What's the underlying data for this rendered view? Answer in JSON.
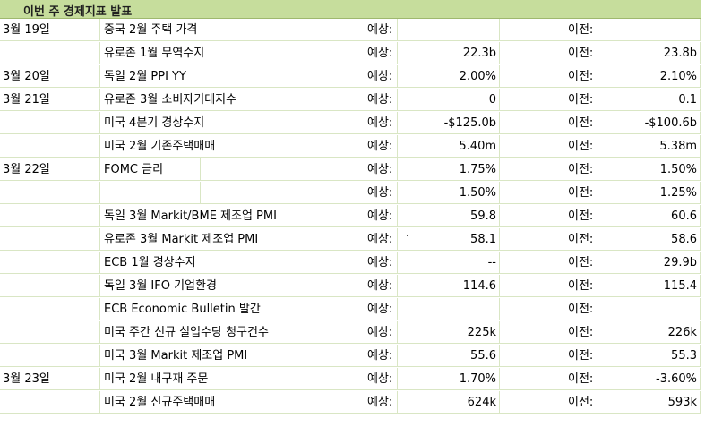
{
  "title": "이번 주 경제지표 발표",
  "forecast_label": "예상:",
  "previous_label": "이전:",
  "rows": [
    {
      "date": "3월 19일",
      "event": "중국 2월 주택 가격",
      "forecast": "",
      "previous": ""
    },
    {
      "date": "",
      "event": "유로존 1월 무역수지",
      "forecast": "22.3b",
      "previous": "23.8b"
    },
    {
      "date": "3월 20일",
      "event": "독일 2월 PPI YY",
      "forecast": "2.00%",
      "previous": "2.10%"
    },
    {
      "date": "3월 21일",
      "event": "유로존 3월 소비자기대지수",
      "forecast": "0",
      "previous": "0.1"
    },
    {
      "date": "",
      "event": "미국 4분기 경상수지",
      "forecast": "-$125.0b",
      "previous": "-$100.6b"
    },
    {
      "date": "",
      "event": "미국 2월 기존주택매매",
      "forecast": "5.40m",
      "previous": "5.38m"
    },
    {
      "date": "3월 22일",
      "event": "FOMC 금리",
      "forecast": "1.75%",
      "previous": "1.50%"
    },
    {
      "date": "",
      "event": "",
      "forecast": "1.50%",
      "previous": "1.25%"
    },
    {
      "date": "",
      "event": "독일 3월 Markit/BME 제조업 PMI",
      "forecast": "59.8",
      "previous": "60.6"
    },
    {
      "date": "",
      "event": "유로존 3월 Markit 제조업 PMI",
      "forecast": "58.1",
      "previous": "58.6"
    },
    {
      "date": "",
      "event": "ECB 1월 경상수지",
      "forecast": "--",
      "previous": "29.9b"
    },
    {
      "date": "",
      "event": "독일 3월 IFO 기업환경",
      "forecast": "114.6",
      "previous": "115.4"
    },
    {
      "date": "",
      "event": "ECB Economic Bulletin 발간",
      "forecast": "",
      "previous": ""
    },
    {
      "date": "",
      "event": "미국 주간 신규 실업수당 청구건수",
      "forecast": "225k",
      "previous": "226k"
    },
    {
      "date": "",
      "event": "미국 3월 Markit 제조업 PMI",
      "forecast": "55.6",
      "previous": "55.3"
    },
    {
      "date": "3월 23일",
      "event": "미국 2월 내구재 주문",
      "forecast": "1.70%",
      "previous": "-3.60%"
    },
    {
      "date": "",
      "event": "미국 2월 신규주택매매",
      "forecast": "624k",
      "previous": "593k"
    }
  ]
}
